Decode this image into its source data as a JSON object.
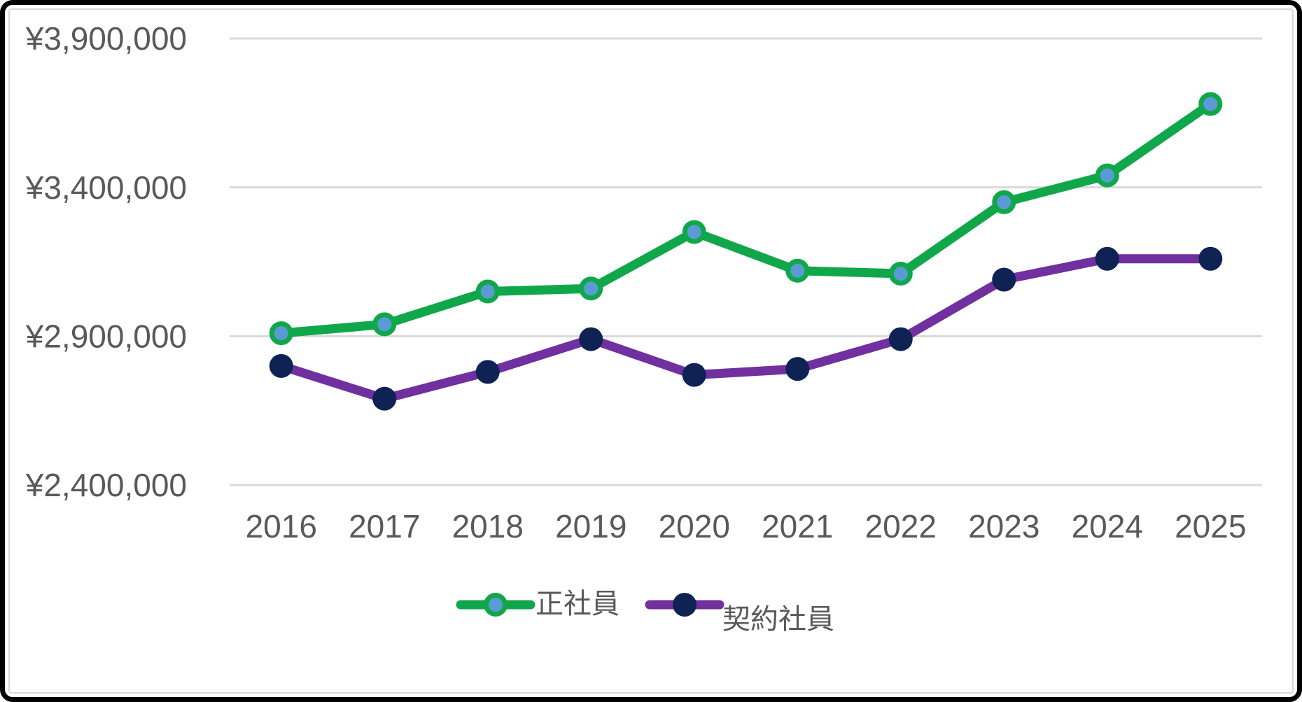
{
  "chart_data": {
    "type": "line",
    "title": "",
    "categories": [
      "2016",
      "2017",
      "2018",
      "2019",
      "2020",
      "2021",
      "2022",
      "2023",
      "2024",
      "2025"
    ],
    "series": [
      {
        "name": "正社員",
        "values": [
          2910000,
          2940000,
          3050000,
          3060000,
          3250000,
          3120000,
          3110000,
          3350000,
          3440000,
          3680000
        ],
        "line_color": "#10A74A",
        "marker_fill": "#5B9BD5",
        "marker_border": "#10A74A"
      },
      {
        "name": "契約社員",
        "values": [
          2800000,
          2690000,
          2780000,
          2890000,
          2770000,
          2790000,
          2890000,
          3090000,
          3160000,
          3160000
        ],
        "line_color": "#7030A0",
        "marker_fill": "#0E2254",
        "marker_border": "#0E2254"
      }
    ],
    "y_axis": {
      "min": 2400000,
      "max": 3900000,
      "step": 500000,
      "tick_labels": [
        "¥2,400,000",
        "¥2,900,000",
        "¥3,400,000",
        "¥3,900,000"
      ],
      "tick_values": [
        2400000,
        2900000,
        3400000,
        3900000
      ]
    },
    "x_axis": {
      "tick_labels": [
        "2016",
        "2017",
        "2018",
        "2019",
        "2020",
        "2021",
        "2022",
        "2023",
        "2024",
        "2025"
      ]
    },
    "legend": {
      "position": "bottom",
      "items": [
        "正社員",
        "契約社員"
      ]
    },
    "grid": true,
    "xlabel": "",
    "ylabel": "",
    "colors": {
      "gridline": "#D9D9D9",
      "axis_text": "#595959",
      "background": "#FFFFFF",
      "frame_border": "#000000",
      "chart_outline": "#D9D9D9"
    }
  }
}
